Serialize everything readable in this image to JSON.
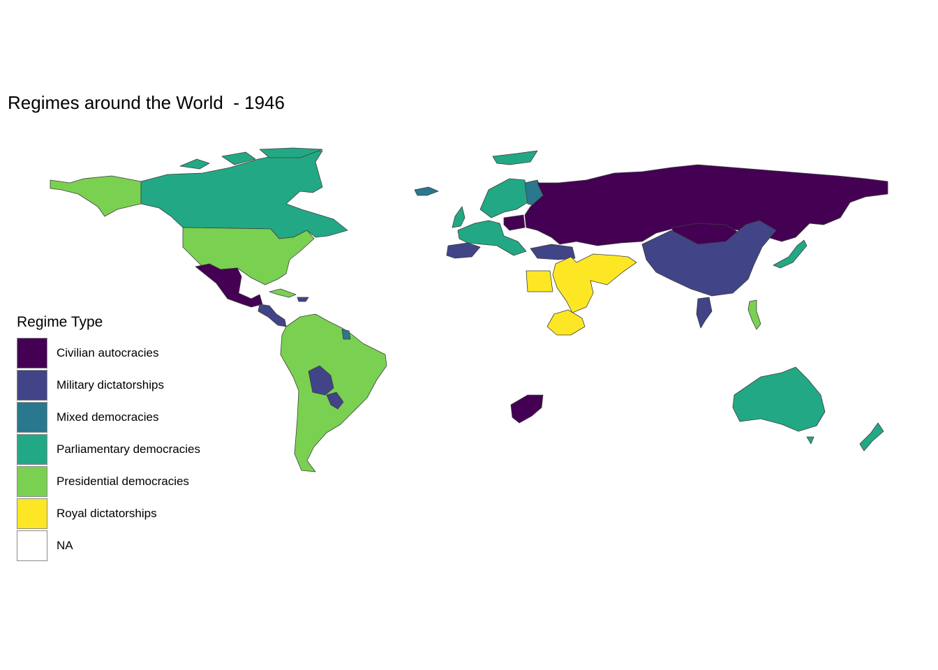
{
  "title": "Regimes around the World  - 1946",
  "legend": {
    "title": "Regime Type",
    "items": [
      {
        "label": "Civilian autocracies",
        "color": "#440154"
      },
      {
        "label": "Military dictatorships",
        "color": "#414487"
      },
      {
        "label": "Mixed democracies",
        "color": "#2A788E"
      },
      {
        "label": "Parliamentary democracies",
        "color": "#22A884"
      },
      {
        "label": "Presidential democracies",
        "color": "#7AD151"
      },
      {
        "label": "Royal dictatorships",
        "color": "#FDE725"
      },
      {
        "label": "NA",
        "color": "#FFFFFF"
      }
    ]
  },
  "regions": [
    {
      "name": "Canada",
      "regime": "Parliamentary democracies"
    },
    {
      "name": "Alaska",
      "regime": "Presidential democracies"
    },
    {
      "name": "United States",
      "regime": "Presidential democracies"
    },
    {
      "name": "Mexico",
      "regime": "Civilian autocracies"
    },
    {
      "name": "Central America",
      "regime": "Military dictatorships"
    },
    {
      "name": "Cuba",
      "regime": "Presidential democracies"
    },
    {
      "name": "South America",
      "regime": "Presidential democracies"
    },
    {
      "name": "Bolivia",
      "regime": "Military dictatorships"
    },
    {
      "name": "Paraguay",
      "regime": "Military dictatorships"
    },
    {
      "name": "Suriname",
      "regime": "Mixed democracies"
    },
    {
      "name": "Greenland",
      "regime": "Parliamentary democracies"
    },
    {
      "name": "Iceland",
      "regime": "Mixed democracies"
    },
    {
      "name": "Scandinavia",
      "regime": "Parliamentary democracies"
    },
    {
      "name": "Finland",
      "regime": "Mixed democracies"
    },
    {
      "name": "Western Europe",
      "regime": "Parliamentary democracies"
    },
    {
      "name": "Iberia",
      "regime": "Military dictatorships"
    },
    {
      "name": "Poland",
      "regime": "Civilian autocracies"
    },
    {
      "name": "Soviet Union",
      "regime": "Civilian autocracies"
    },
    {
      "name": "Turkey",
      "regime": "Military dictatorships"
    },
    {
      "name": "Middle East",
      "regime": "Royal dictatorships"
    },
    {
      "name": "Egypt",
      "regime": "Royal dictatorships"
    },
    {
      "name": "Ethiopia",
      "regime": "Royal dictatorships"
    },
    {
      "name": "China",
      "regime": "Military dictatorships"
    },
    {
      "name": "Mongolia",
      "regime": "Civilian autocracies"
    },
    {
      "name": "Japan",
      "regime": "Parliamentary democracies"
    },
    {
      "name": "Thailand",
      "regime": "Military dictatorships"
    },
    {
      "name": "Philippines",
      "regime": "Presidential democracies"
    },
    {
      "name": "South Africa",
      "regime": "Civilian autocracies"
    },
    {
      "name": "Australia",
      "regime": "Parliamentary democracies"
    },
    {
      "name": "New Zealand",
      "regime": "Parliamentary democracies"
    }
  ]
}
